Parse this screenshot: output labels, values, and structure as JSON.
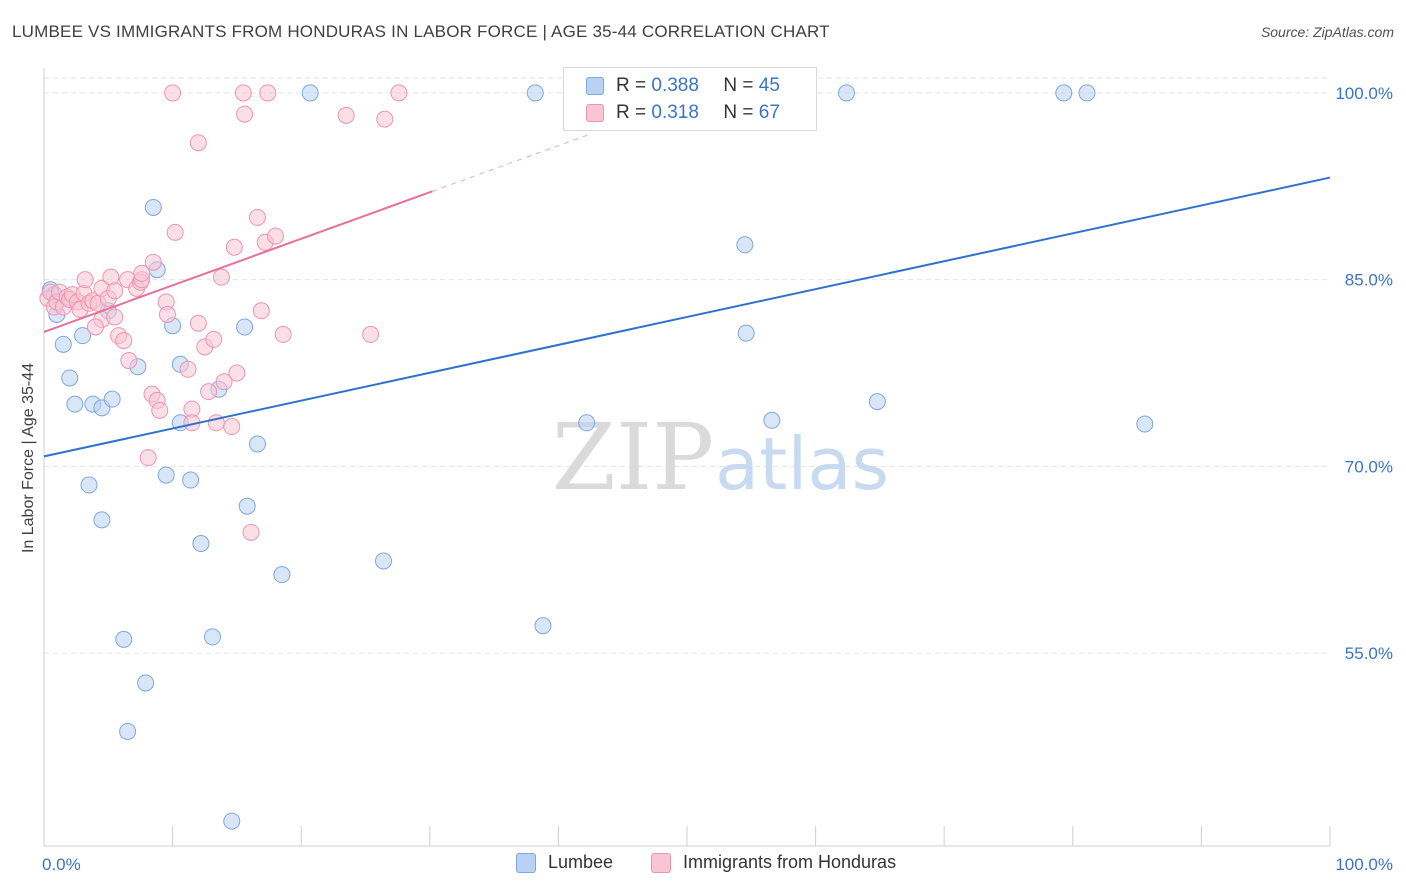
{
  "title": "LUMBEE VS IMMIGRANTS FROM HONDURAS IN LABOR FORCE | AGE 35-44 CORRELATION CHART",
  "source": "Source: ZipAtlas.com",
  "watermark": {
    "zip": "ZIP",
    "atlas": "atlas"
  },
  "legend_top": {
    "r_label": "R =",
    "n_label": "N =",
    "rows": [
      {
        "r": "0.388",
        "n": "45"
      },
      {
        "r": "0.318",
        "n": "67"
      }
    ]
  },
  "colors": {
    "lumbee_fill": "#b9d1f3",
    "lumbee_stroke": "#7fa7e0",
    "lumbee_line": "#2f72cc",
    "honduras_fill": "#f8c5d4",
    "honduras_stroke": "#ee93b1",
    "honduras_line": "#e8709a",
    "axis_text": "#3b74c7",
    "grid": "#e2e2e2"
  },
  "chart_data": {
    "type": "scatter",
    "title": "LUMBEE VS IMMIGRANTS FROM HONDURAS IN LABOR FORCE | AGE 35-44 CORRELATION CHART",
    "xlabel": "",
    "ylabel": "In Labor Force | Age 35-44",
    "xlim": [
      0,
      100
    ],
    "ylim": [
      39.5,
      101.2
    ],
    "x_tick_labels": [
      "0.0%",
      "100.0%"
    ],
    "y_ticks": [
      55,
      70,
      85,
      100
    ],
    "y_tick_labels": [
      "55.0%",
      "70.0%",
      "85.0%",
      "100.0%"
    ],
    "grid": true,
    "legend": "bottom-center",
    "series": [
      {
        "name": "Lumbee",
        "r": 0.388,
        "n": 45,
        "trend": {
          "x0": 0,
          "y0": 70.8,
          "x1": 100,
          "y1": 93.2
        },
        "points": [
          [
            0.5,
            84.2
          ],
          [
            0.8,
            83.8
          ],
          [
            1.0,
            82.2
          ],
          [
            1.5,
            79.8
          ],
          [
            2.0,
            77.1
          ],
          [
            2.4,
            75.0
          ],
          [
            3.0,
            80.5
          ],
          [
            3.5,
            68.5
          ],
          [
            3.8,
            75.0
          ],
          [
            4.5,
            74.7
          ],
          [
            4.5,
            65.7
          ],
          [
            5.0,
            82.5
          ],
          [
            5.3,
            75.4
          ],
          [
            6.2,
            56.1
          ],
          [
            6.5,
            48.7
          ],
          [
            7.3,
            78.0
          ],
          [
            7.9,
            52.6
          ],
          [
            8.5,
            90.8
          ],
          [
            8.8,
            85.8
          ],
          [
            9.5,
            69.3
          ],
          [
            10.0,
            81.3
          ],
          [
            10.6,
            78.2
          ],
          [
            10.6,
            73.5
          ],
          [
            11.4,
            68.9
          ],
          [
            12.2,
            63.8
          ],
          [
            13.1,
            56.3
          ],
          [
            13.6,
            76.2
          ],
          [
            14.6,
            41.5
          ],
          [
            15.6,
            81.2
          ],
          [
            15.8,
            66.8
          ],
          [
            16.6,
            71.8
          ],
          [
            18.5,
            61.3
          ],
          [
            20.7,
            100
          ],
          [
            26.4,
            62.4
          ],
          [
            38.2,
            100
          ],
          [
            38.8,
            57.2
          ],
          [
            42.2,
            73.5
          ],
          [
            54.5,
            87.8
          ],
          [
            54.6,
            80.7
          ],
          [
            56.6,
            73.7
          ],
          [
            62.4,
            100
          ],
          [
            64.8,
            75.2
          ],
          [
            79.3,
            100
          ],
          [
            81.1,
            100
          ],
          [
            85.6,
            73.4
          ]
        ]
      },
      {
        "name": "Immigrants from Honduras",
        "r": 0.318,
        "n": 67,
        "trend": {
          "x0": 0,
          "y0": 80.8,
          "x1": 30.2,
          "y1": 92.1
        },
        "trend_dashed_to": {
          "x": 42.5,
          "y": 96.7
        },
        "points": [
          [
            0.3,
            83.5
          ],
          [
            0.5,
            84.0
          ],
          [
            0.8,
            82.8
          ],
          [
            1.0,
            83.2
          ],
          [
            1.2,
            84.0
          ],
          [
            1.5,
            82.8
          ],
          [
            1.8,
            83.6
          ],
          [
            2.0,
            83.4
          ],
          [
            2.2,
            83.8
          ],
          [
            2.6,
            83.2
          ],
          [
            2.8,
            82.6
          ],
          [
            3.1,
            83.9
          ],
          [
            3.5,
            83.1
          ],
          [
            3.8,
            83.3
          ],
          [
            3.2,
            85.0
          ],
          [
            4.2,
            83.1
          ],
          [
            4.5,
            84.3
          ],
          [
            4.5,
            81.8
          ],
          [
            4.0,
            81.2
          ],
          [
            5.0,
            83.5
          ],
          [
            5.2,
            85.2
          ],
          [
            5.5,
            84.1
          ],
          [
            5.5,
            82.0
          ],
          [
            5.8,
            80.5
          ],
          [
            6.2,
            80.1
          ],
          [
            6.5,
            85.0
          ],
          [
            6.6,
            78.5
          ],
          [
            7.2,
            84.3
          ],
          [
            7.5,
            84.8
          ],
          [
            7.6,
            85.0
          ],
          [
            7.6,
            85.5
          ],
          [
            8.1,
            70.7
          ],
          [
            8.4,
            75.8
          ],
          [
            8.5,
            86.4
          ],
          [
            8.8,
            75.3
          ],
          [
            9.0,
            74.5
          ],
          [
            9.5,
            83.2
          ],
          [
            9.6,
            82.2
          ],
          [
            10.0,
            100
          ],
          [
            10.2,
            88.8
          ],
          [
            11.2,
            77.8
          ],
          [
            11.5,
            74.6
          ],
          [
            11.5,
            73.5
          ],
          [
            12.0,
            96.0
          ],
          [
            12.0,
            81.5
          ],
          [
            12.5,
            79.6
          ],
          [
            12.8,
            76.0
          ],
          [
            13.2,
            80.2
          ],
          [
            13.4,
            73.5
          ],
          [
            13.8,
            85.2
          ],
          [
            14.0,
            76.8
          ],
          [
            14.6,
            73.2
          ],
          [
            14.8,
            87.6
          ],
          [
            15.0,
            77.5
          ],
          [
            15.5,
            100
          ],
          [
            15.6,
            98.3
          ],
          [
            16.1,
            64.7
          ],
          [
            16.6,
            90.0
          ],
          [
            16.9,
            82.5
          ],
          [
            17.2,
            88.0
          ],
          [
            17.4,
            100
          ],
          [
            18.0,
            88.5
          ],
          [
            18.6,
            80.6
          ],
          [
            23.5,
            98.2
          ],
          [
            25.4,
            80.6
          ],
          [
            26.5,
            97.9
          ],
          [
            27.6,
            100
          ]
        ]
      }
    ]
  }
}
